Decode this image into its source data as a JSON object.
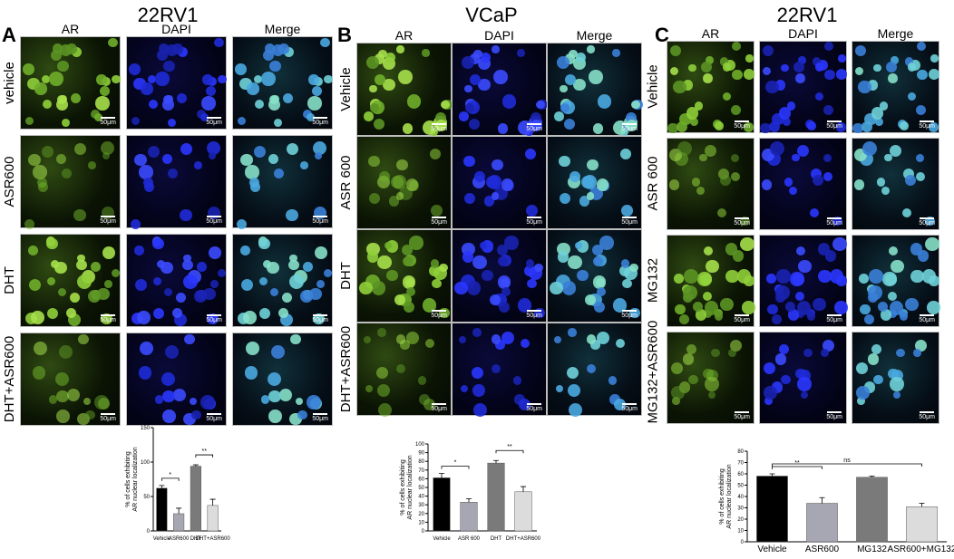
{
  "panels": [
    {
      "letter": "A",
      "title": "22RV1",
      "columns": [
        "AR",
        "DAPI",
        "Merge"
      ],
      "rows": [
        "vehicle",
        "ASR600",
        "DHT",
        "DHT+ASR600"
      ],
      "scale_bar": "50μm",
      "chart_data": {
        "type": "bar",
        "categories": [
          "Vehicle",
          "ASR600",
          "DHT",
          "DHT+ASR600"
        ],
        "values": [
          62,
          25,
          94,
          37
        ],
        "errors": [
          4,
          8,
          2,
          9
        ],
        "colors": [
          "#000000",
          "#a7a7b3",
          "#7a7a7a",
          "#dcdcdc"
        ],
        "ylabel": "% of cells exhibiting AR nuclear localization",
        "ylim": [
          0,
          150
        ],
        "yticks": [
          0,
          50,
          100,
          150
        ],
        "significance": [
          {
            "from": 0,
            "to": 1,
            "label": "*"
          },
          {
            "from": 2,
            "to": 3,
            "label": "**"
          }
        ]
      }
    },
    {
      "letter": "B",
      "title": "VCaP",
      "columns": [
        "AR",
        "DAPI",
        "Merge"
      ],
      "rows": [
        "Vehicle",
        "ASR 600",
        "DHT",
        "DHT+ASR600"
      ],
      "scale_bar": "50μm",
      "chart_data": {
        "type": "bar",
        "categories": [
          "Vehicle",
          "ASR 600",
          "DHT",
          "DHT+ASR600"
        ],
        "values": [
          61,
          33,
          78,
          45
        ],
        "errors": [
          5,
          4,
          3,
          6
        ],
        "colors": [
          "#000000",
          "#a7a7b3",
          "#7a7a7a",
          "#dcdcdc"
        ],
        "ylabel": "% of cells exhibiting AR nuclear localization",
        "ylim": [
          0,
          100
        ],
        "yticks": [
          0,
          10,
          20,
          30,
          40,
          50,
          60,
          70,
          80,
          90,
          100
        ],
        "significance": [
          {
            "from": 0,
            "to": 1,
            "label": "*"
          },
          {
            "from": 2,
            "to": 3,
            "label": "**"
          }
        ]
      }
    },
    {
      "letter": "C",
      "title": "22RV1",
      "columns": [
        "AR",
        "DAPI",
        "Merge"
      ],
      "rows": [
        "Vehicle",
        "ASR 600",
        "MG132",
        "MG132+ASR600"
      ],
      "scale_bar": "50μm",
      "chart_data": {
        "type": "bar",
        "categories": [
          "Vehicle",
          "ASR600",
          "MG132",
          "ASR600+MG132"
        ],
        "values": [
          58,
          34,
          57,
          31
        ],
        "errors": [
          2,
          5,
          1,
          3
        ],
        "colors": [
          "#000000",
          "#a7a7b3",
          "#7a7a7a",
          "#dcdcdc"
        ],
        "ylabel": "% of cells exhibiting AR nuclear localization",
        "ylim": [
          0,
          80
        ],
        "yticks": [
          0,
          10,
          20,
          30,
          40,
          50,
          60,
          70,
          80
        ],
        "significance": [
          {
            "from": 0,
            "to": 1,
            "label": "**"
          },
          {
            "from": 0,
            "to": 3,
            "label": "ns"
          }
        ]
      }
    }
  ]
}
